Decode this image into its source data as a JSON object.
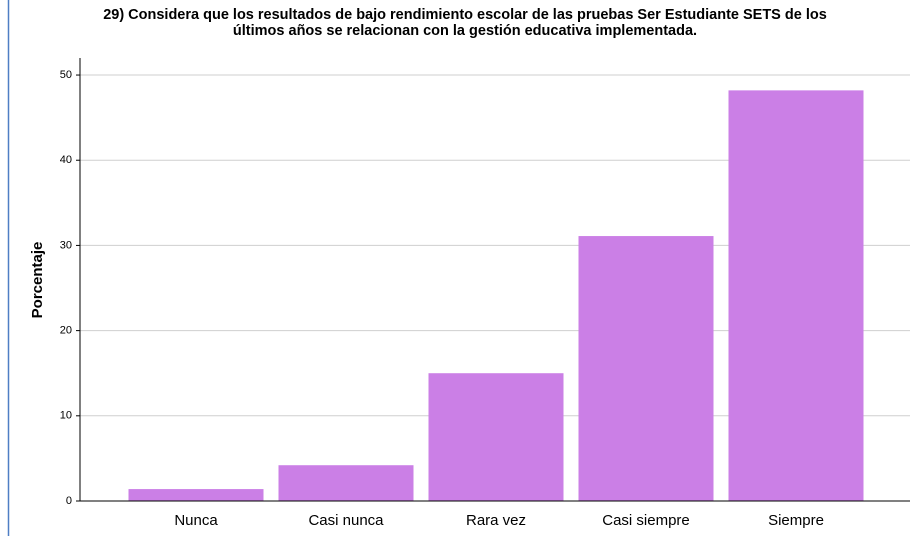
{
  "chart_data": {
    "type": "bar",
    "title": [
      "29) Considera que los resultados de bajo rendimiento escolar de las pruebas Ser Estudiante SETS de los",
      "últimos años se relacionan con la gestión educativa implementada."
    ],
    "y_label": "Porcentaje",
    "categories": [
      "Nunca",
      "Casi nunca",
      "Rara vez",
      "Casi siempre",
      "Siempre"
    ],
    "values": [
      1.4,
      4.2,
      15.0,
      31.1,
      48.2
    ],
    "color": "#cb7fe6",
    "ylim": [
      0,
      52
    ],
    "yticks": [
      0,
      10,
      20,
      30,
      40,
      50
    ],
    "grid": true
  }
}
